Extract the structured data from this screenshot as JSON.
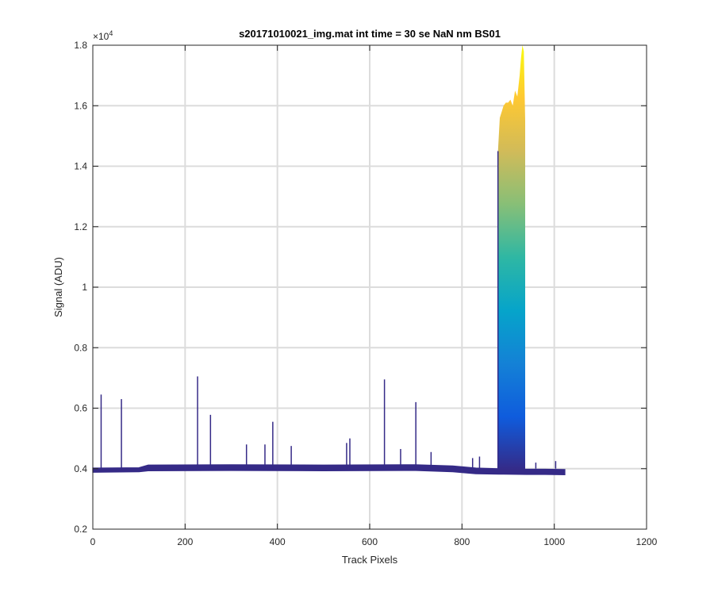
{
  "chart_data": {
    "type": "area",
    "title": "s20171010021_img.mat int time = 30 se  NaN nm BS01",
    "xlabel": "Track Pixels",
    "ylabel": "Signal (ADU)",
    "y_exponent_label": "×10",
    "y_exponent_power": "4",
    "xlim": [
      0,
      1200
    ],
    "ylim": [
      0.2,
      1.8
    ],
    "x_ticks": [
      0,
      200,
      400,
      600,
      800,
      1000,
      1200
    ],
    "x_tick_labels": [
      "0",
      "200",
      "400",
      "600",
      "800",
      "1000",
      "1200"
    ],
    "y_ticks": [
      0.2,
      0.4,
      0.6,
      0.8,
      1.0,
      1.2,
      1.4,
      1.6,
      1.8
    ],
    "y_tick_labels": [
      "0.2",
      "0.4",
      "0.6",
      "0.8",
      "1",
      "1.2",
      "1.4",
      "1.6",
      "1.8"
    ],
    "grid": true,
    "colormap": [
      "#352a87",
      "#0f5cdd",
      "#1481d6",
      "#06a4ca",
      "#2eb7a4",
      "#87bf77",
      "#d1bb59",
      "#fec832",
      "#f9fb0e"
    ],
    "baseline_band": {
      "x": [
        0,
        100,
        120,
        300,
        500,
        700,
        780,
        830,
        880,
        940,
        980,
        1023
      ],
      "low": [
        0.388,
        0.39,
        0.393,
        0.394,
        0.393,
        0.394,
        0.39,
        0.383,
        0.382,
        0.381,
        0.381,
        0.38
      ],
      "high": [
        0.402,
        0.403,
        0.412,
        0.413,
        0.412,
        0.413,
        0.409,
        0.402,
        0.4,
        0.398,
        0.398,
        0.397
      ]
    },
    "spikes": [
      {
        "x": 18,
        "y": 0.645
      },
      {
        "x": 62,
        "y": 0.63
      },
      {
        "x": 227,
        "y": 0.705
      },
      {
        "x": 255,
        "y": 0.578
      },
      {
        "x": 333,
        "y": 0.48
      },
      {
        "x": 373,
        "y": 0.48
      },
      {
        "x": 390,
        "y": 0.555
      },
      {
        "x": 430,
        "y": 0.475
      },
      {
        "x": 550,
        "y": 0.485
      },
      {
        "x": 557,
        "y": 0.5
      },
      {
        "x": 632,
        "y": 0.695
      },
      {
        "x": 667,
        "y": 0.465
      },
      {
        "x": 700,
        "y": 0.62
      },
      {
        "x": 733,
        "y": 0.455
      },
      {
        "x": 823,
        "y": 0.435
      },
      {
        "x": 838,
        "y": 0.44
      },
      {
        "x": 960,
        "y": 0.42
      },
      {
        "x": 1003,
        "y": 0.425
      }
    ],
    "peak": {
      "x": [
        878,
        882,
        886,
        890,
        895,
        900,
        905,
        910,
        915,
        920,
        925,
        928,
        931,
        934,
        937
      ],
      "y": [
        1.45,
        1.56,
        1.58,
        1.6,
        1.61,
        1.61,
        1.62,
        1.6,
        1.65,
        1.63,
        1.7,
        1.76,
        1.8,
        1.78,
        1.55
      ],
      "base": 0.395
    }
  }
}
